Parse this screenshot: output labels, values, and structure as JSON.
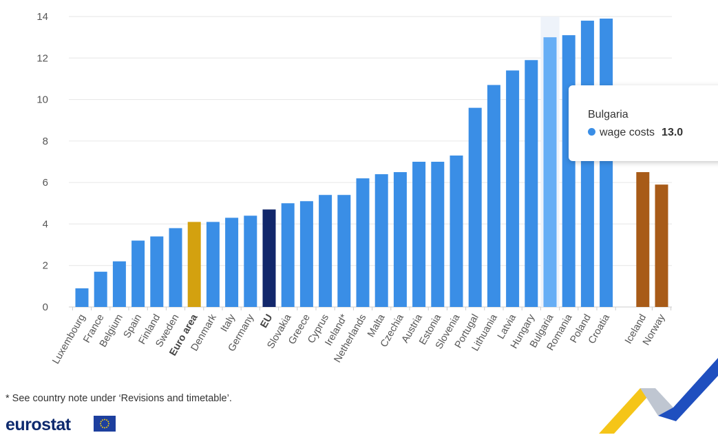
{
  "chart_data": {
    "type": "bar",
    "categories": [
      "Luxembourg",
      "France",
      "Belgium",
      "Spain",
      "Finland",
      "Sweden",
      "Euro area",
      "Denmark",
      "Italy",
      "Germany",
      "EU",
      "Slovakia",
      "Greece",
      "Cyprus",
      "Ireland*",
      "Netherlands",
      "Malta",
      "Czechia",
      "Austria",
      "Estonia",
      "Slovenia",
      "Portugal",
      "Lithuania",
      "Latvia",
      "Hungary",
      "Bulgaria",
      "Romania",
      "Poland",
      "Croatia",
      "Iceland",
      "Norway"
    ],
    "series": [
      {
        "name": "wage costs",
        "values": [
          0.9,
          1.7,
          2.2,
          3.2,
          3.4,
          3.8,
          4.1,
          4.1,
          4.3,
          4.4,
          4.7,
          5.0,
          5.1,
          5.4,
          5.4,
          6.2,
          6.4,
          6.5,
          7.0,
          7.0,
          7.3,
          9.6,
          10.7,
          11.4,
          11.9,
          13.0,
          13.1,
          13.8,
          13.9,
          6.5,
          5.9
        ]
      }
    ],
    "bold_categories": [
      "Euro area",
      "EU"
    ],
    "colors": {
      "default": "#3a8ee6",
      "highlighted": "#66aef5",
      "euro_area": "#d3a10f",
      "eu": "#12276b",
      "efta": "#a85b18",
      "highlight_band": "#eef3fa",
      "grid": "#e6e6e6"
    },
    "highlighted_category": "Bulgaria",
    "ylim": [
      0,
      14
    ],
    "yticks": [
      0,
      2,
      4,
      6,
      8,
      10,
      12,
      14
    ],
    "grid": true,
    "xlabel": "",
    "ylabel": "",
    "title": ""
  },
  "tooltip": {
    "country": "Bulgaria",
    "series_label": "wage costs",
    "value": "13.0"
  },
  "footnote": "* See country note under ‘Revisions and timetable’.",
  "brand": {
    "logo_text": "eurostat"
  }
}
